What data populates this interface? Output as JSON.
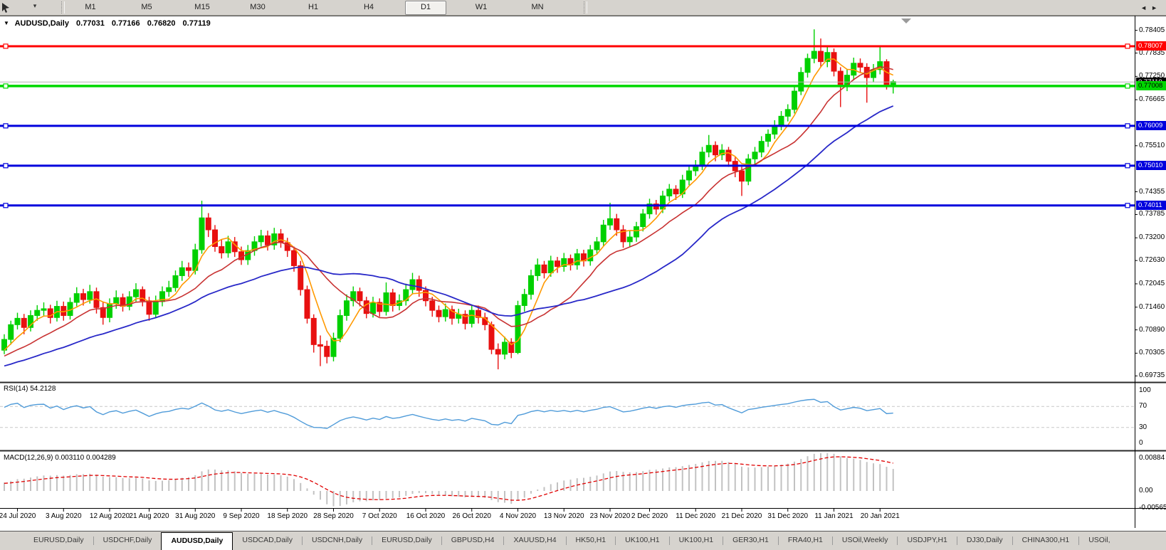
{
  "toolbar": {
    "dropdown": "▾",
    "timeframes": [
      "M1",
      "M5",
      "M15",
      "M30",
      "H1",
      "H4",
      "D1",
      "W1",
      "MN"
    ],
    "active_timeframe": "D1"
  },
  "chart": {
    "collapse_arrow": "▼",
    "symbol_display": "AUDUSD,Daily",
    "open": "0.77031",
    "high": "0.77166",
    "low": "0.76820",
    "close": "0.77119"
  },
  "price_axis": {
    "ticks": [
      "0.78405",
      "0.77835",
      "0.77250",
      "0.76665",
      "0.75510",
      "0.74355",
      "0.73785",
      "0.73200",
      "0.72630",
      "0.72045",
      "0.71460",
      "0.70890",
      "0.70305",
      "0.69735"
    ],
    "tags": [
      {
        "text": "0.78007",
        "price": 0.78007,
        "bg": "#ff0000",
        "fg": "#ffffff"
      },
      {
        "text": "0.77110",
        "price": 0.7711,
        "bg": "#000000",
        "fg": "#ffffff"
      },
      {
        "text": "0.77008",
        "price": 0.77008,
        "bg": "#00d800",
        "fg": "#000000"
      },
      {
        "text": "0.76009",
        "price": 0.76009,
        "bg": "#0000dd",
        "fg": "#ffffff"
      },
      {
        "text": "0.75010",
        "price": 0.7501,
        "bg": "#0000dd",
        "fg": "#ffffff"
      },
      {
        "text": "0.74011",
        "price": 0.74011,
        "bg": "#0000dd",
        "fg": "#ffffff"
      }
    ]
  },
  "hlines": [
    {
      "price": 0.78007,
      "color": "#ff0000",
      "width": 3
    },
    {
      "price": 0.77008,
      "color": "#00d800",
      "width": 3.5
    },
    {
      "price": 0.76009,
      "color": "#0000dd",
      "width": 3
    },
    {
      "price": 0.7501,
      "color": "#0000dd",
      "width": 3
    },
    {
      "price": 0.74011,
      "color": "#0000dd",
      "width": 3
    }
  ],
  "bid_line": {
    "price": 0.7711,
    "color": "#b4b4b4"
  },
  "time_axis": {
    "labels": [
      {
        "text": "24 Jul 2020",
        "bar": 2
      },
      {
        "text": "3 Aug 2020",
        "bar": 9
      },
      {
        "text": "12 Aug 2020",
        "bar": 16
      },
      {
        "text": "21 Aug 2020",
        "bar": 22
      },
      {
        "text": "31 Aug 2020",
        "bar": 29
      },
      {
        "text": "9 Sep 2020",
        "bar": 36
      },
      {
        "text": "18 Sep 2020",
        "bar": 43
      },
      {
        "text": "28 Sep 2020",
        "bar": 50
      },
      {
        "text": "7 Oct 2020",
        "bar": 57
      },
      {
        "text": "16 Oct 2020",
        "bar": 64
      },
      {
        "text": "26 Oct 2020",
        "bar": 71
      },
      {
        "text": "4 Nov 2020",
        "bar": 78
      },
      {
        "text": "13 Nov 2020",
        "bar": 85
      },
      {
        "text": "23 Nov 2020",
        "bar": 92
      },
      {
        "text": "2 Dec 2020",
        "bar": 98
      },
      {
        "text": "11 Dec 2020",
        "bar": 105
      },
      {
        "text": "21 Dec 2020",
        "bar": 112
      },
      {
        "text": "31 Dec 2020",
        "bar": 119
      },
      {
        "text": "11 Jan 2021",
        "bar": 126
      },
      {
        "text": "20 Jan 2021",
        "bar": 133
      }
    ]
  },
  "indicators": {
    "rsi": {
      "label": "RSI(14) 54.2128",
      "period": 14,
      "value": "54.2128",
      "color": "#4f9bd9",
      "levels": [
        "100",
        "70",
        "30",
        "0"
      ],
      "level_values": [
        100,
        70,
        30,
        0
      ]
    },
    "macd": {
      "label": "MACD(12,26,9) 0.003110 0.004289",
      "fast": 12,
      "slow": 26,
      "signal": 9,
      "value": "0.003110",
      "signal_value": "0.004289",
      "hist_color": "#c2c2c2",
      "signal_color": "#e00000",
      "axis_labels": [
        "0.00884",
        "0.00",
        "-0.005651"
      ]
    },
    "mas": [
      {
        "name": "ma-fast",
        "period": 5,
        "color": "#ff9900"
      },
      {
        "name": "ma-mid",
        "period": 13,
        "color": "#c83232"
      },
      {
        "name": "ma-slow",
        "period": 30,
        "color": "#2828c8"
      }
    ]
  },
  "chart_data": {
    "type": "candlestick",
    "symbol": "AUDUSD",
    "timeframe": "Daily",
    "up_color": "#00d000",
    "down_color": "#e81010",
    "candles": [
      [
        0.7038,
        0.7078,
        0.7028,
        0.7065
      ],
      [
        0.7065,
        0.7112,
        0.7052,
        0.7102
      ],
      [
        0.7102,
        0.7132,
        0.709,
        0.7118
      ],
      [
        0.7118,
        0.7129,
        0.7078,
        0.7095
      ],
      [
        0.7095,
        0.7138,
        0.7085,
        0.7125
      ],
      [
        0.7125,
        0.7151,
        0.7112,
        0.7138
      ],
      [
        0.7138,
        0.7158,
        0.7125,
        0.7142
      ],
      [
        0.7142,
        0.7152,
        0.7105,
        0.712
      ],
      [
        0.712,
        0.7162,
        0.711,
        0.7148
      ],
      [
        0.7148,
        0.716,
        0.7112,
        0.7125
      ],
      [
        0.7125,
        0.717,
        0.7115,
        0.7158
      ],
      [
        0.7158,
        0.7196,
        0.7148,
        0.718
      ],
      [
        0.718,
        0.7192,
        0.715,
        0.7165
      ],
      [
        0.7165,
        0.7202,
        0.7155,
        0.7185
      ],
      [
        0.7185,
        0.7195,
        0.713,
        0.7145
      ],
      [
        0.7145,
        0.7158,
        0.7102,
        0.712
      ],
      [
        0.712,
        0.7168,
        0.7108,
        0.7155
      ],
      [
        0.7155,
        0.7188,
        0.7142,
        0.717
      ],
      [
        0.717,
        0.718,
        0.7135,
        0.7148
      ],
      [
        0.7148,
        0.7186,
        0.7138,
        0.7172
      ],
      [
        0.7172,
        0.7206,
        0.716,
        0.719
      ],
      [
        0.719,
        0.7198,
        0.7148,
        0.7162
      ],
      [
        0.7162,
        0.7172,
        0.7112,
        0.7128
      ],
      [
        0.7128,
        0.7175,
        0.7118,
        0.716
      ],
      [
        0.716,
        0.7198,
        0.7148,
        0.7185
      ],
      [
        0.7185,
        0.7212,
        0.7172,
        0.7195
      ],
      [
        0.7195,
        0.7238,
        0.7185,
        0.7225
      ],
      [
        0.7225,
        0.7262,
        0.7212,
        0.7245
      ],
      [
        0.7245,
        0.7258,
        0.7222,
        0.7238
      ],
      [
        0.7238,
        0.7305,
        0.7228,
        0.729
      ],
      [
        0.729,
        0.7413,
        0.728,
        0.737
      ],
      [
        0.737,
        0.7382,
        0.7322,
        0.734
      ],
      [
        0.734,
        0.7352,
        0.7285,
        0.7298
      ],
      [
        0.7298,
        0.7315,
        0.7268,
        0.7282
      ],
      [
        0.7282,
        0.7325,
        0.727,
        0.731
      ],
      [
        0.731,
        0.7322,
        0.7272,
        0.7285
      ],
      [
        0.7285,
        0.7298,
        0.7252,
        0.7265
      ],
      [
        0.7265,
        0.7302,
        0.7252,
        0.7288
      ],
      [
        0.7288,
        0.7324,
        0.7275,
        0.731
      ],
      [
        0.731,
        0.734,
        0.7298,
        0.7325
      ],
      [
        0.7325,
        0.7338,
        0.7288,
        0.7302
      ],
      [
        0.7302,
        0.7345,
        0.729,
        0.733
      ],
      [
        0.733,
        0.7342,
        0.7295,
        0.7308
      ],
      [
        0.7308,
        0.732,
        0.7272,
        0.7288
      ],
      [
        0.7288,
        0.7298,
        0.7235,
        0.725
      ],
      [
        0.725,
        0.7262,
        0.7175,
        0.719
      ],
      [
        0.719,
        0.72,
        0.7105,
        0.7118
      ],
      [
        0.7118,
        0.7128,
        0.7032,
        0.7052
      ],
      [
        0.7052,
        0.7075,
        0.6998,
        0.7048
      ],
      [
        0.7048,
        0.7062,
        0.7005,
        0.7022
      ],
      [
        0.7022,
        0.7082,
        0.701,
        0.7068
      ],
      [
        0.7068,
        0.714,
        0.7058,
        0.7125
      ],
      [
        0.7125,
        0.7178,
        0.7112,
        0.7162
      ],
      [
        0.7162,
        0.7198,
        0.7148,
        0.7185
      ],
      [
        0.7185,
        0.7195,
        0.7148,
        0.7162
      ],
      [
        0.7162,
        0.7172,
        0.7118,
        0.713
      ],
      [
        0.713,
        0.7172,
        0.712,
        0.7158
      ],
      [
        0.7158,
        0.7168,
        0.7122,
        0.7135
      ],
      [
        0.7135,
        0.7208,
        0.7125,
        0.7182
      ],
      [
        0.7182,
        0.7192,
        0.7135,
        0.715
      ],
      [
        0.715,
        0.7178,
        0.7138,
        0.7162
      ],
      [
        0.7162,
        0.7205,
        0.715,
        0.719
      ],
      [
        0.719,
        0.7232,
        0.7178,
        0.7215
      ],
      [
        0.7215,
        0.7225,
        0.7172,
        0.7188
      ],
      [
        0.7188,
        0.7198,
        0.7148,
        0.7162
      ],
      [
        0.7162,
        0.7172,
        0.7122,
        0.7138
      ],
      [
        0.7138,
        0.715,
        0.7108,
        0.7122
      ],
      [
        0.7122,
        0.7155,
        0.711,
        0.714
      ],
      [
        0.714,
        0.715,
        0.7102,
        0.7118
      ],
      [
        0.7118,
        0.7142,
        0.7105,
        0.7128
      ],
      [
        0.7128,
        0.7138,
        0.709,
        0.7105
      ],
      [
        0.7105,
        0.7152,
        0.7095,
        0.7138
      ],
      [
        0.7138,
        0.715,
        0.7105,
        0.712
      ],
      [
        0.712,
        0.7132,
        0.7088,
        0.7102
      ],
      [
        0.7102,
        0.711,
        0.7028,
        0.704
      ],
      [
        0.704,
        0.7055,
        0.699,
        0.7028
      ],
      [
        0.7028,
        0.7072,
        0.7015,
        0.7058
      ],
      [
        0.7058,
        0.7068,
        0.7018,
        0.7032
      ],
      [
        0.7032,
        0.7162,
        0.7028,
        0.715
      ],
      [
        0.715,
        0.7192,
        0.7135,
        0.7178
      ],
      [
        0.7178,
        0.724,
        0.7165,
        0.7225
      ],
      [
        0.7225,
        0.7268,
        0.7212,
        0.7252
      ],
      [
        0.7252,
        0.7262,
        0.7218,
        0.7232
      ],
      [
        0.7232,
        0.7275,
        0.7222,
        0.7262
      ],
      [
        0.7262,
        0.7272,
        0.7232,
        0.7248
      ],
      [
        0.7248,
        0.7282,
        0.7235,
        0.7268
      ],
      [
        0.7268,
        0.7278,
        0.7238,
        0.7252
      ],
      [
        0.7252,
        0.7292,
        0.724,
        0.728
      ],
      [
        0.728,
        0.729,
        0.7248,
        0.7262
      ],
      [
        0.7262,
        0.7302,
        0.725,
        0.729
      ],
      [
        0.729,
        0.7322,
        0.7278,
        0.731
      ],
      [
        0.731,
        0.7365,
        0.73,
        0.7352
      ],
      [
        0.7352,
        0.7408,
        0.734,
        0.7368
      ],
      [
        0.7368,
        0.738,
        0.7325,
        0.734
      ],
      [
        0.734,
        0.7352,
        0.7295,
        0.731
      ],
      [
        0.731,
        0.7338,
        0.7298,
        0.7322
      ],
      [
        0.7322,
        0.736,
        0.731,
        0.7348
      ],
      [
        0.7348,
        0.7392,
        0.7336,
        0.738
      ],
      [
        0.738,
        0.7418,
        0.7368,
        0.7405
      ],
      [
        0.7405,
        0.7415,
        0.7378,
        0.7392
      ],
      [
        0.7392,
        0.7438,
        0.7382,
        0.7425
      ],
      [
        0.7425,
        0.7455,
        0.7412,
        0.7442
      ],
      [
        0.7442,
        0.7452,
        0.7415,
        0.743
      ],
      [
        0.743,
        0.7478,
        0.742,
        0.7465
      ],
      [
        0.7465,
        0.75,
        0.7452,
        0.7488
      ],
      [
        0.7488,
        0.7515,
        0.7475,
        0.7502
      ],
      [
        0.7502,
        0.7548,
        0.749,
        0.7535
      ],
      [
        0.7535,
        0.7578,
        0.7522,
        0.7552
      ],
      [
        0.7552,
        0.7562,
        0.7512,
        0.7528
      ],
      [
        0.7528,
        0.7555,
        0.7515,
        0.754
      ],
      [
        0.754,
        0.7548,
        0.7498,
        0.7512
      ],
      [
        0.7512,
        0.7522,
        0.7472,
        0.7488
      ],
      [
        0.7488,
        0.7498,
        0.7425,
        0.7462
      ],
      [
        0.7462,
        0.753,
        0.7452,
        0.7518
      ],
      [
        0.7518,
        0.7548,
        0.7505,
        0.7535
      ],
      [
        0.7535,
        0.7575,
        0.7522,
        0.7562
      ],
      [
        0.7562,
        0.7592,
        0.7548,
        0.758
      ],
      [
        0.758,
        0.7615,
        0.7568,
        0.7602
      ],
      [
        0.7602,
        0.7638,
        0.759,
        0.7625
      ],
      [
        0.7625,
        0.7655,
        0.7612,
        0.7642
      ],
      [
        0.7642,
        0.77,
        0.7632,
        0.7688
      ],
      [
        0.7688,
        0.7748,
        0.7678,
        0.7735
      ],
      [
        0.7735,
        0.7782,
        0.7722,
        0.777
      ],
      [
        0.777,
        0.7843,
        0.7758,
        0.7788
      ],
      [
        0.7788,
        0.782,
        0.7748,
        0.7762
      ],
      [
        0.7762,
        0.7802,
        0.7748,
        0.7785
      ],
      [
        0.7785,
        0.7795,
        0.7725,
        0.7738
      ],
      [
        0.7738,
        0.7748,
        0.7648,
        0.77
      ],
      [
        0.77,
        0.7742,
        0.7688,
        0.7728
      ],
      [
        0.7728,
        0.7772,
        0.7715,
        0.7758
      ],
      [
        0.7758,
        0.777,
        0.7735,
        0.7748
      ],
      [
        0.7748,
        0.7758,
        0.7659,
        0.7722
      ],
      [
        0.7722,
        0.7756,
        0.771,
        0.7742
      ],
      [
        0.7742,
        0.7798,
        0.773,
        0.7762
      ],
      [
        0.7762,
        0.7768,
        0.7692,
        0.7703
      ],
      [
        0.77031,
        0.77166,
        0.7682,
        0.77119
      ]
    ]
  },
  "tabs": {
    "items": [
      "EURUSD,Daily",
      "USDCHF,Daily",
      "AUDUSD,Daily",
      "USDCAD,Daily",
      "USDCNH,Daily",
      "EURUSD,Daily",
      "GBPUSD,H4",
      "XAUUSD,H4",
      "HK50,H1",
      "UK100,H1",
      "UK100,H1",
      "GER30,H1",
      "FRA40,H1",
      "USOil,Weekly",
      "USDJPY,H1",
      "DJ30,Daily",
      "CHINA300,H1",
      "USOil,"
    ],
    "active_index": 2,
    "scroll_left": "◄",
    "scroll_right": "►"
  }
}
